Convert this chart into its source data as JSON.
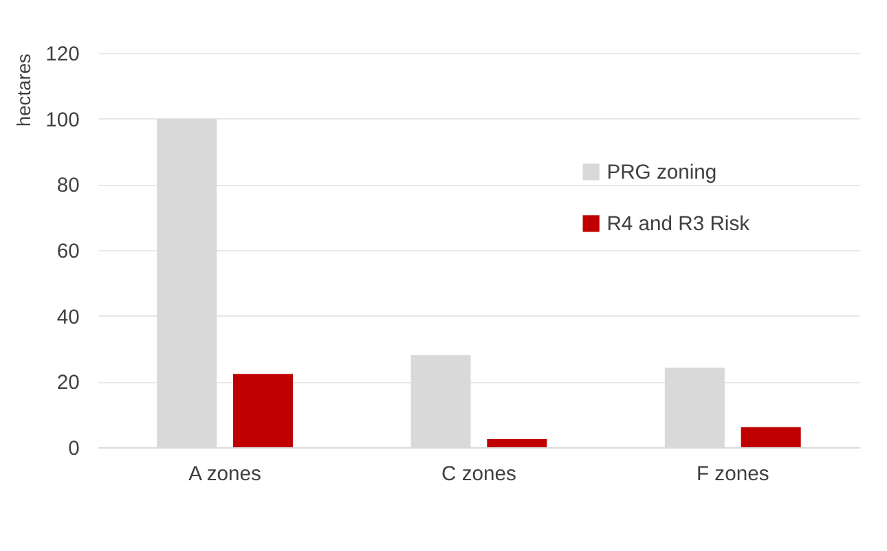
{
  "chart_data": {
    "type": "bar",
    "ylabel": "hectares",
    "categories": [
      "A zones",
      "C zones",
      "F zones"
    ],
    "series": [
      {
        "name": "PRG zoning",
        "color": "#d9d9d9",
        "values": [
          100,
          28,
          24.2
        ]
      },
      {
        "name": "R4 and R3 Risk",
        "color": "#c00000",
        "values": [
          22.3,
          2.5,
          6.1
        ]
      }
    ],
    "ylim": [
      0,
      120
    ],
    "yticks": [
      0,
      20,
      40,
      60,
      80,
      100,
      120
    ],
    "grid": "y",
    "legend": "top right"
  }
}
